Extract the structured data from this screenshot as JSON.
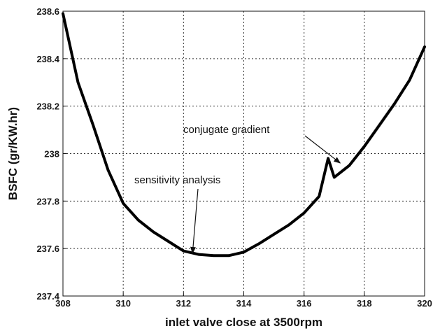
{
  "chart_data": {
    "type": "line",
    "title": "",
    "xlabel": "inlet valve close at 3500rpm",
    "ylabel": "BSFC (gr/KW.hr)",
    "xlim": [
      308,
      320
    ],
    "ylim": [
      237.4,
      238.6
    ],
    "x_ticks": [
      "308",
      "310",
      "312",
      "314",
      "316",
      "318",
      "320"
    ],
    "y_ticks": [
      "237.4",
      "237.6",
      "237.8",
      "238",
      "238.2",
      "238.4",
      "238.6"
    ],
    "grid": true,
    "series": [
      {
        "x": [
          308,
          308.5,
          309,
          309.5,
          310,
          310.5,
          311,
          311.5,
          312,
          312.5,
          313,
          313.5,
          314,
          314.5,
          315,
          315.5,
          316,
          316.5,
          316.8,
          317.0,
          317.5,
          318,
          318.5,
          319,
          319.5,
          320
        ],
        "y": [
          238.59,
          238.3,
          238.12,
          237.93,
          237.79,
          237.72,
          237.67,
          237.63,
          237.59,
          237.575,
          237.57,
          237.57,
          237.585,
          237.62,
          237.66,
          237.7,
          237.75,
          237.82,
          237.98,
          237.9,
          237.95,
          238.03,
          238.12,
          238.21,
          238.31,
          238.45
        ],
        "color": "#000000"
      }
    ],
    "annotations": [
      {
        "text": "conjugate gradient",
        "target_x": 317.2,
        "target_y": 237.96
      },
      {
        "text": "sensitivity analysis",
        "target_x": 312.3,
        "target_y": 237.58
      }
    ]
  }
}
